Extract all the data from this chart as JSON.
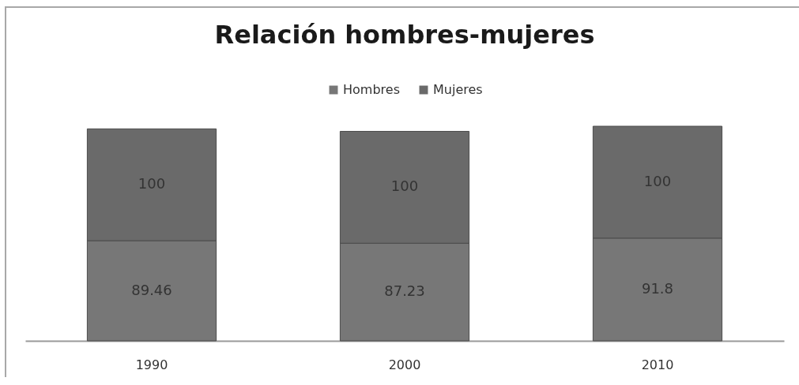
{
  "chart_data": {
    "type": "bar",
    "title": "Relación hombres-mujeres",
    "categories": [
      "1990",
      "2000",
      "2010"
    ],
    "series": [
      {
        "name": "Hombres",
        "color": "#777777",
        "values": [
          89.46,
          87.23,
          91.8
        ]
      },
      {
        "name": "Mujeres",
        "color": "#6a6a6a",
        "values": [
          100,
          100,
          100
        ]
      }
    ],
    "stacked": true,
    "data_labels": true,
    "legend": "top"
  }
}
